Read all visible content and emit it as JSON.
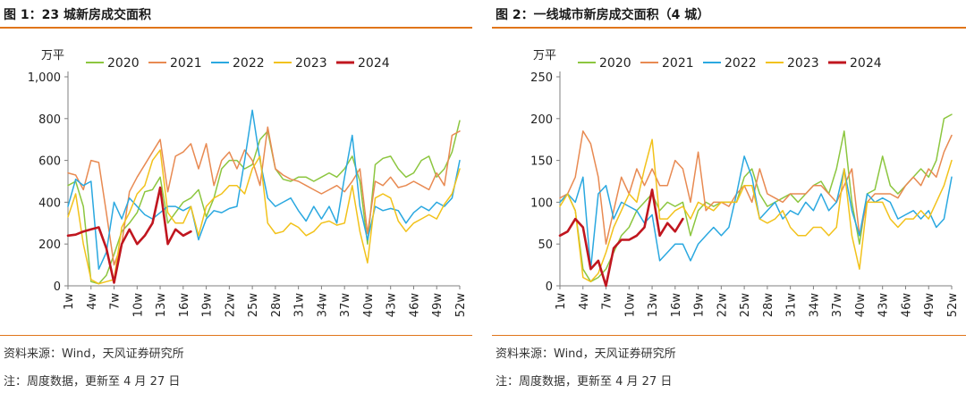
{
  "colors": {
    "accent_rule": "#e0751a",
    "s2020": "#8cc63f",
    "s2021": "#e88a52",
    "s2022": "#2aa8e0",
    "s2023": "#f2c21b",
    "s2024": "#c0161f"
  },
  "left": {
    "title": "图 1：23 城新房成交面积",
    "source": "资料来源：Wind，天风证券研究所",
    "note": "注：周度数据，更新至 4 月 27 日"
  },
  "right": {
    "title": "图 2：一线城市新房成交面积（4 城）",
    "source": "资料来源：Wind，天风证券研究所",
    "note": "注：周度数据，更新至 4 月 27 日"
  },
  "chart_data": [
    {
      "type": "line",
      "unit": "万平",
      "ylim": [
        0,
        1000
      ],
      "yticks": [
        "0",
        "200",
        "400",
        "600",
        "800",
        "1,000"
      ],
      "yticks_values": [
        0,
        200,
        400,
        600,
        800,
        1000
      ],
      "xticks": [
        "1w",
        "4w",
        "7w",
        "10w",
        "13w",
        "16w",
        "19w",
        "22w",
        "25w",
        "28w",
        "31w",
        "34w",
        "37w",
        "40w",
        "43w",
        "46w",
        "49w",
        "52w"
      ],
      "legend_position": "top",
      "grid": false,
      "series": [
        {
          "name": "2020",
          "color_key": "s2020",
          "values": [
            480,
            500,
            380,
            20,
            10,
            50,
            150,
            260,
            300,
            350,
            450,
            460,
            520,
            300,
            350,
            400,
            420,
            460,
            330,
            420,
            560,
            600,
            600,
            560,
            580,
            700,
            740,
            560,
            510,
            500,
            520,
            520,
            500,
            520,
            540,
            520,
            560,
            620,
            500,
            200,
            580,
            610,
            620,
            560,
            520,
            540,
            600,
            620,
            520,
            560,
            640,
            790
          ]
        },
        {
          "name": "2021",
          "color_key": "s2021",
          "values": [
            540,
            530,
            460,
            600,
            590,
            350,
            100,
            200,
            450,
            520,
            580,
            640,
            700,
            450,
            620,
            640,
            680,
            560,
            680,
            480,
            600,
            640,
            560,
            650,
            600,
            480,
            760,
            560,
            530,
            510,
            500,
            480,
            460,
            440,
            460,
            480,
            450,
            500,
            560,
            250,
            500,
            480,
            520,
            470,
            480,
            500,
            480,
            460,
            540,
            480,
            720,
            740
          ]
        },
        {
          "name": "2022",
          "color_key": "s2022",
          "values": [
            380,
            510,
            480,
            500,
            80,
            160,
            400,
            320,
            420,
            380,
            340,
            320,
            350,
            380,
            380,
            360,
            380,
            220,
            320,
            360,
            350,
            370,
            380,
            600,
            840,
            600,
            420,
            380,
            400,
            420,
            360,
            310,
            380,
            320,
            380,
            300,
            520,
            720,
            380,
            220,
            380,
            360,
            370,
            360,
            300,
            350,
            380,
            360,
            400,
            380,
            420,
            600
          ]
        },
        {
          "name": "2023",
          "color_key": "s2023",
          "values": [
            330,
            440,
            200,
            30,
            10,
            20,
            30,
            280,
            350,
            440,
            480,
            600,
            650,
            350,
            300,
            300,
            380,
            240,
            380,
            420,
            440,
            480,
            480,
            440,
            560,
            620,
            300,
            250,
            260,
            300,
            280,
            240,
            260,
            300,
            310,
            290,
            300,
            480,
            260,
            110,
            420,
            440,
            420,
            310,
            260,
            300,
            320,
            340,
            320,
            390,
            440,
            560
          ]
        },
        {
          "name": "2024",
          "color_key": "s2024",
          "values": [
            240,
            245,
            260,
            270,
            280,
            180,
            15,
            200,
            270,
            200,
            240,
            300,
            470,
            200,
            270,
            240,
            260
          ]
        }
      ]
    },
    {
      "type": "line",
      "unit": "万平",
      "ylim": [
        0,
        250
      ],
      "yticks": [
        "0",
        "50",
        "100",
        "150",
        "200",
        "250"
      ],
      "yticks_values": [
        0,
        50,
        100,
        150,
        200,
        250
      ],
      "xticks": [
        "1w",
        "4w",
        "7w",
        "10w",
        "13w",
        "16w",
        "19w",
        "22w",
        "25w",
        "28w",
        "31w",
        "34w",
        "37w",
        "40w",
        "43w",
        "46w",
        "49w",
        "52w"
      ],
      "legend_position": "top",
      "grid": false,
      "series": [
        {
          "name": "2020",
          "color_key": "s2020",
          "values": [
            100,
            110,
            90,
            20,
            5,
            10,
            20,
            40,
            60,
            70,
            90,
            100,
            110,
            90,
            100,
            95,
            100,
            60,
            90,
            100,
            95,
            100,
            100,
            100,
            130,
            140,
            110,
            95,
            100,
            105,
            110,
            100,
            110,
            120,
            125,
            110,
            140,
            185,
            100,
            50,
            110,
            115,
            155,
            120,
            110,
            120,
            130,
            140,
            130,
            150,
            200,
            205
          ]
        },
        {
          "name": "2021",
          "color_key": "s2021",
          "values": [
            105,
            110,
            130,
            185,
            170,
            130,
            50,
            90,
            130,
            110,
            140,
            120,
            140,
            120,
            120,
            150,
            140,
            100,
            160,
            90,
            100,
            100,
            95,
            110,
            120,
            100,
            140,
            110,
            105,
            100,
            110,
            110,
            110,
            120,
            120,
            110,
            100,
            120,
            140,
            60,
            100,
            110,
            110,
            110,
            105,
            120,
            130,
            120,
            140,
            130,
            160,
            180
          ]
        },
        {
          "name": "2022",
          "color_key": "s2022",
          "values": [
            100,
            110,
            100,
            130,
            20,
            110,
            120,
            80,
            100,
            95,
            90,
            75,
            85,
            30,
            40,
            50,
            50,
            30,
            50,
            60,
            70,
            60,
            70,
            110,
            155,
            130,
            80,
            90,
            100,
            80,
            90,
            85,
            100,
            90,
            110,
            90,
            100,
            140,
            90,
            60,
            110,
            100,
            105,
            100,
            80,
            85,
            90,
            80,
            90,
            70,
            80,
            130
          ]
        },
        {
          "name": "2023",
          "color_key": "s2023",
          "values": [
            95,
            110,
            90,
            10,
            5,
            15,
            40,
            70,
            90,
            110,
            100,
            140,
            175,
            80,
            80,
            90,
            95,
            80,
            100,
            95,
            90,
            100,
            100,
            100,
            120,
            120,
            80,
            75,
            80,
            90,
            70,
            60,
            60,
            70,
            70,
            60,
            70,
            140,
            60,
            20,
            100,
            100,
            100,
            80,
            70,
            80,
            80,
            90,
            80,
            100,
            120,
            150
          ]
        },
        {
          "name": "2024",
          "color_key": "s2024",
          "values": [
            60,
            65,
            80,
            70,
            20,
            30,
            0,
            45,
            55,
            55,
            60,
            70,
            115,
            60,
            75,
            65,
            80
          ]
        }
      ]
    }
  ]
}
